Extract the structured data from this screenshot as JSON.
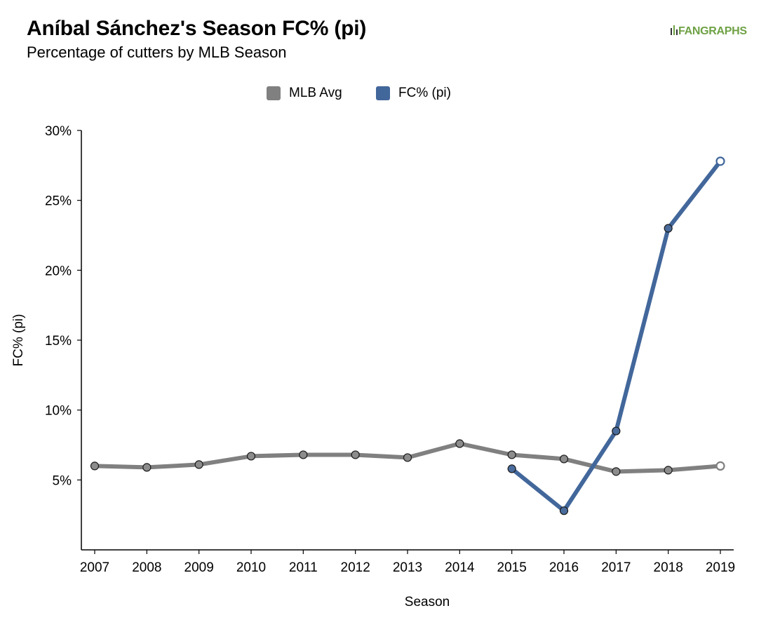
{
  "header": {
    "title": "Aníbal Sánchez's Season FC% (pi)",
    "subtitle": "Percentage of cutters by MLB Season",
    "logo_text": "FANGRAPHS"
  },
  "legend": {
    "placement": "top-center",
    "items": [
      {
        "label": "MLB Avg",
        "color": "#808080"
      },
      {
        "label": "FC% (pi)",
        "color": "#42679b"
      }
    ]
  },
  "chart_data": {
    "type": "line",
    "title": "Aníbal Sánchez's Season FC% (pi)",
    "subtitle": "Percentage of cutters by MLB Season",
    "xlabel": "Season",
    "ylabel": "FC% (pi)",
    "x": [
      2007,
      2008,
      2009,
      2010,
      2011,
      2012,
      2013,
      2014,
      2015,
      2016,
      2017,
      2018,
      2019
    ],
    "ylim": [
      0,
      30
    ],
    "yticks": [
      5,
      10,
      15,
      20,
      25,
      30
    ],
    "ytick_labels": [
      "5%",
      "10%",
      "15%",
      "20%",
      "25%",
      "30%"
    ],
    "grid": false,
    "series": [
      {
        "name": "MLB Avg",
        "color": "#808080",
        "marker_color": "#8c8c8c",
        "values": [
          6.0,
          5.9,
          6.1,
          6.7,
          6.8,
          6.8,
          6.6,
          7.6,
          6.8,
          6.5,
          5.6,
          5.7,
          6.0
        ],
        "last_point_hollow": true
      },
      {
        "name": "FC% (pi)",
        "color": "#42679b",
        "marker_color": "#4a6c9c",
        "values": [
          null,
          null,
          null,
          null,
          null,
          null,
          null,
          null,
          5.8,
          2.8,
          8.5,
          23.0,
          27.8
        ],
        "last_point_hollow": true
      }
    ]
  }
}
